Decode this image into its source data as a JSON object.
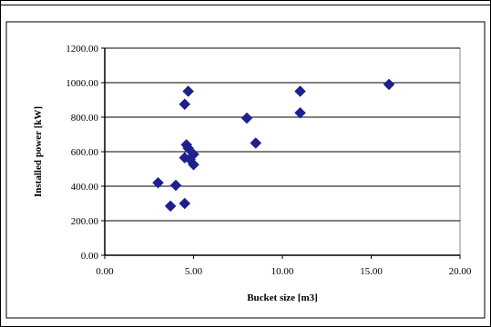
{
  "chart_data": {
    "type": "scatter",
    "title": "",
    "xlabel": "Bucket size [m3]",
    "ylabel": "Installed power [kW]",
    "xlim": [
      0,
      20
    ],
    "ylim": [
      0,
      1200
    ],
    "x_ticks": [
      0,
      5,
      10,
      15,
      20
    ],
    "y_ticks": [
      0,
      200,
      400,
      600,
      800,
      1000,
      1200
    ],
    "x_tick_labels": [
      "0.00",
      "5.00",
      "10.00",
      "15.00",
      "20.00"
    ],
    "y_tick_labels": [
      "0.00",
      "200.00",
      "400.00",
      "600.00",
      "800.00",
      "1000.00",
      "1200.00"
    ],
    "grid": {
      "x": false,
      "y": true
    },
    "legend": "none",
    "marker": "diamond",
    "marker_color": "#1f1f8f",
    "series": [
      {
        "points": [
          {
            "x": 3.0,
            "y": 420
          },
          {
            "x": 3.7,
            "y": 285
          },
          {
            "x": 4.0,
            "y": 405
          },
          {
            "x": 4.5,
            "y": 300
          },
          {
            "x": 4.5,
            "y": 565
          },
          {
            "x": 4.5,
            "y": 875
          },
          {
            "x": 4.6,
            "y": 640
          },
          {
            "x": 4.7,
            "y": 620
          },
          {
            "x": 4.7,
            "y": 950
          },
          {
            "x": 4.8,
            "y": 555
          },
          {
            "x": 5.0,
            "y": 585
          },
          {
            "x": 5.0,
            "y": 525
          },
          {
            "x": 8.0,
            "y": 795
          },
          {
            "x": 8.5,
            "y": 650
          },
          {
            "x": 11.0,
            "y": 950
          },
          {
            "x": 11.0,
            "y": 825
          },
          {
            "x": 16.0,
            "y": 990
          }
        ]
      }
    ]
  }
}
